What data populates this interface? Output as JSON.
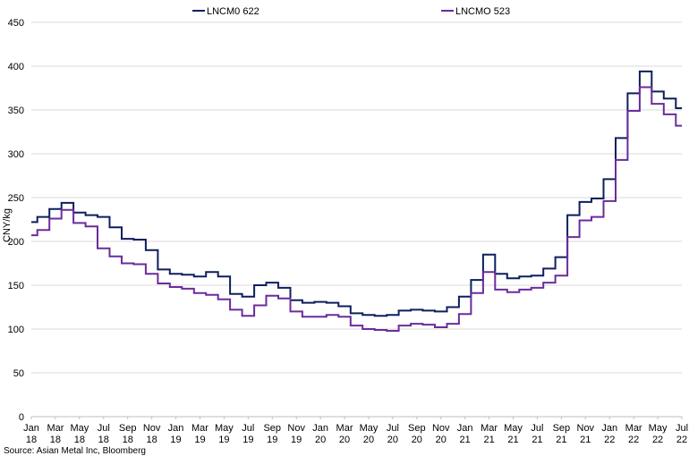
{
  "chart_data": {
    "type": "line",
    "title": "",
    "xlabel": "",
    "ylabel": "CNY/kg",
    "ylim": [
      0,
      450
    ],
    "yticks": [
      0,
      50,
      100,
      150,
      200,
      250,
      300,
      350,
      400,
      450
    ],
    "grid": true,
    "legend": "top-center",
    "source": "Source: Asian Metal Inc, Bloomberg",
    "xtick_labels": [
      [
        "Jan",
        "18"
      ],
      [
        "Mar",
        "18"
      ],
      [
        "May",
        "18"
      ],
      [
        "Jul",
        "18"
      ],
      [
        "Sep",
        "18"
      ],
      [
        "Nov",
        "18"
      ],
      [
        "Jan",
        "19"
      ],
      [
        "Mar",
        "19"
      ],
      [
        "May",
        "19"
      ],
      [
        "Jul",
        "19"
      ],
      [
        "Sep",
        "19"
      ],
      [
        "Nov",
        "19"
      ],
      [
        "Jan",
        "20"
      ],
      [
        "Mar",
        "20"
      ],
      [
        "May",
        "20"
      ],
      [
        "Jul",
        "20"
      ],
      [
        "Sep",
        "20"
      ],
      [
        "Nov",
        "20"
      ],
      [
        "Jan",
        "21"
      ],
      [
        "Mar",
        "21"
      ],
      [
        "May",
        "21"
      ],
      [
        "Jul",
        "21"
      ],
      [
        "Sep",
        "21"
      ],
      [
        "Nov",
        "21"
      ],
      [
        "Jan",
        "22"
      ],
      [
        "Mar",
        "22"
      ],
      [
        "May",
        "22"
      ],
      [
        "Jul",
        "22"
      ]
    ],
    "x": [
      "2018-01",
      "2018-02",
      "2018-03",
      "2018-04",
      "2018-05",
      "2018-06",
      "2018-07",
      "2018-08",
      "2018-09",
      "2018-10",
      "2018-11",
      "2018-12",
      "2019-01",
      "2019-02",
      "2019-03",
      "2019-04",
      "2019-05",
      "2019-06",
      "2019-07",
      "2019-08",
      "2019-09",
      "2019-10",
      "2019-11",
      "2019-12",
      "2020-01",
      "2020-02",
      "2020-03",
      "2020-04",
      "2020-05",
      "2020-06",
      "2020-07",
      "2020-08",
      "2020-09",
      "2020-10",
      "2020-11",
      "2020-12",
      "2021-01",
      "2021-02",
      "2021-03",
      "2021-04",
      "2021-05",
      "2021-06",
      "2021-07",
      "2021-08",
      "2021-09",
      "2021-10",
      "2021-11",
      "2021-12",
      "2022-01",
      "2022-02",
      "2022-03",
      "2022-04",
      "2022-05",
      "2022-06",
      "2022-07"
    ],
    "series": [
      {
        "name": "LNCM0 622",
        "color": "#0d1f5c",
        "values": [
          222,
          228,
          237,
          244,
          233,
          230,
          228,
          216,
          203,
          202,
          190,
          168,
          163,
          162,
          160,
          165,
          160,
          140,
          137,
          150,
          153,
          147,
          133,
          130,
          131,
          130,
          126,
          118,
          116,
          115,
          116,
          121,
          122,
          121,
          120,
          125,
          137,
          156,
          185,
          163,
          158,
          160,
          161,
          169,
          182,
          230,
          245,
          249,
          271,
          318,
          369,
          394,
          371,
          363,
          352
        ]
      },
      {
        "name": "LNCMO 523",
        "color": "#6a2c9c",
        "values": [
          207,
          213,
          226,
          236,
          221,
          217,
          192,
          183,
          175,
          174,
          163,
          152,
          148,
          146,
          141,
          139,
          134,
          122,
          115,
          127,
          138,
          135,
          120,
          114,
          114,
          116,
          114,
          104,
          100,
          99,
          98,
          104,
          106,
          105,
          102,
          106,
          117,
          141,
          165,
          145,
          142,
          145,
          147,
          153,
          161,
          205,
          224,
          228,
          246,
          293,
          349,
          376,
          357,
          345,
          332
        ]
      }
    ]
  }
}
